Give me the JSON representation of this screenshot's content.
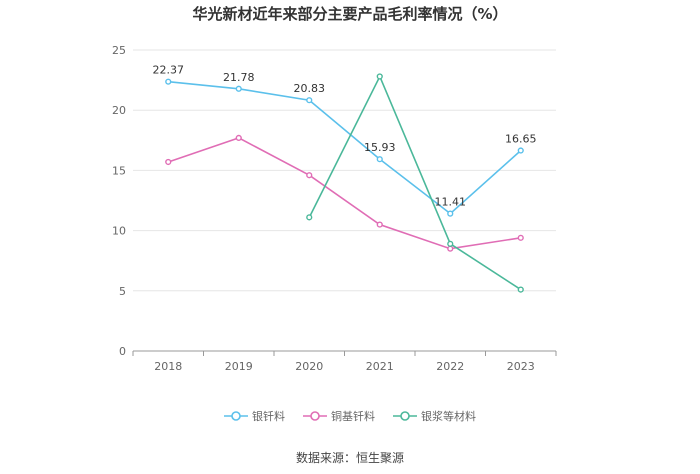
{
  "chart_data": {
    "type": "line",
    "title": "华光新材近年来部分主要产品毛利率情况（%）",
    "categories": [
      "2018",
      "2019",
      "2020",
      "2021",
      "2022",
      "2023"
    ],
    "ylim": [
      0,
      25
    ],
    "yticks": [
      0,
      5,
      10,
      15,
      20,
      25
    ],
    "grid": true,
    "legend_position": "bottom",
    "series": [
      {
        "name": "银钎料",
        "color": "#5bc0eb",
        "values": [
          22.37,
          21.78,
          20.83,
          15.93,
          11.41,
          16.65
        ],
        "data_labels": true
      },
      {
        "name": "铜基钎料",
        "color": "#e06db5",
        "values": [
          15.7,
          17.7,
          14.6,
          10.5,
          8.5,
          9.4
        ],
        "data_labels": false
      },
      {
        "name": "银浆等材料",
        "color": "#4bb89a",
        "values": [
          null,
          null,
          11.1,
          22.8,
          8.9,
          5.1
        ],
        "data_labels": false
      }
    ]
  },
  "source_text": "数据来源：恒生聚源"
}
